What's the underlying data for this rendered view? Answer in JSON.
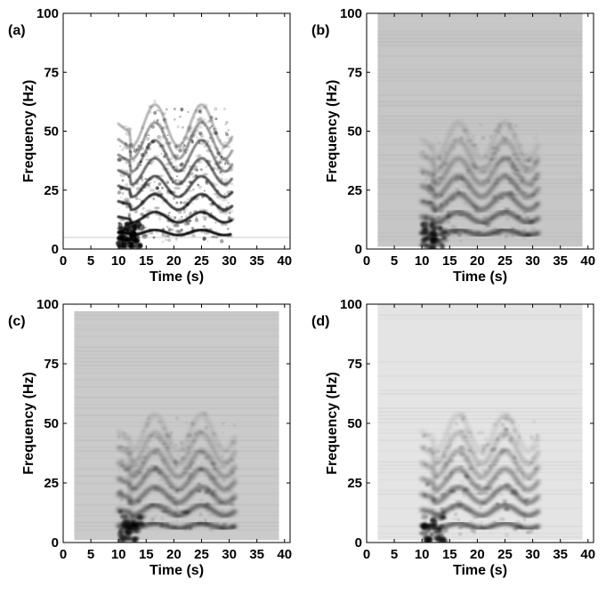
{
  "chart_data": [
    {
      "type": "heatmap",
      "panel_label": "(a)",
      "xlabel": "Time (s)",
      "ylabel": "Frequency (Hz)",
      "xlim": [
        0,
        41
      ],
      "ylim": [
        0,
        100
      ],
      "x_ticks": [
        0,
        5,
        10,
        15,
        20,
        25,
        30,
        35,
        40
      ],
      "y_ticks": [
        0,
        25,
        50,
        75,
        100
      ],
      "background_color": "#ffffff",
      "signal_time_range": [
        10,
        30.5
      ],
      "harmonic_center_hz": [
        7,
        13.5,
        20,
        26.5,
        33,
        39.5,
        46,
        52.5
      ],
      "grid": false
    },
    {
      "type": "heatmap",
      "panel_label": "(b)",
      "xlabel": "Time (s)",
      "ylabel": "Frequency (Hz)",
      "xlim": [
        0,
        41
      ],
      "ylim": [
        0,
        100
      ],
      "x_ticks": [
        0,
        5,
        10,
        15,
        20,
        25,
        30,
        35,
        40
      ],
      "y_ticks": [
        0,
        25,
        50,
        75,
        100
      ],
      "background_color": "#c6c6c6",
      "signal_time_range": [
        10,
        31
      ],
      "harmonic_center_hz": [
        7,
        13.5,
        20,
        26.5,
        33,
        39.5,
        46
      ],
      "grid": false
    },
    {
      "type": "heatmap",
      "panel_label": "(c)",
      "xlabel": "Time (s)",
      "ylabel": "Frequency (Hz)",
      "xlim": [
        0,
        41
      ],
      "ylim": [
        0,
        100
      ],
      "x_ticks": [
        0,
        5,
        10,
        15,
        20,
        25,
        30,
        35,
        40
      ],
      "y_ticks": [
        0,
        25,
        50,
        75,
        100
      ],
      "background_color": "#cacaca",
      "signal_time_range": [
        10,
        31
      ],
      "harmonic_center_hz": [
        7,
        13.5,
        20,
        26.5,
        33,
        39.5,
        46
      ],
      "grid": false
    },
    {
      "type": "heatmap",
      "panel_label": "(d)",
      "xlabel": "Time (s)",
      "ylabel": "Frequency (Hz)",
      "xlim": [
        0,
        41
      ],
      "ylim": [
        0,
        100
      ],
      "x_ticks": [
        0,
        5,
        10,
        15,
        20,
        25,
        30,
        35,
        40
      ],
      "y_ticks": [
        0,
        25,
        50,
        75,
        100
      ],
      "background_color": "#e4e4e4",
      "signal_time_range": [
        10,
        31
      ],
      "harmonic_center_hz": [
        7,
        13.5,
        20,
        26.5,
        33,
        39.5,
        46
      ],
      "grid": false
    }
  ]
}
